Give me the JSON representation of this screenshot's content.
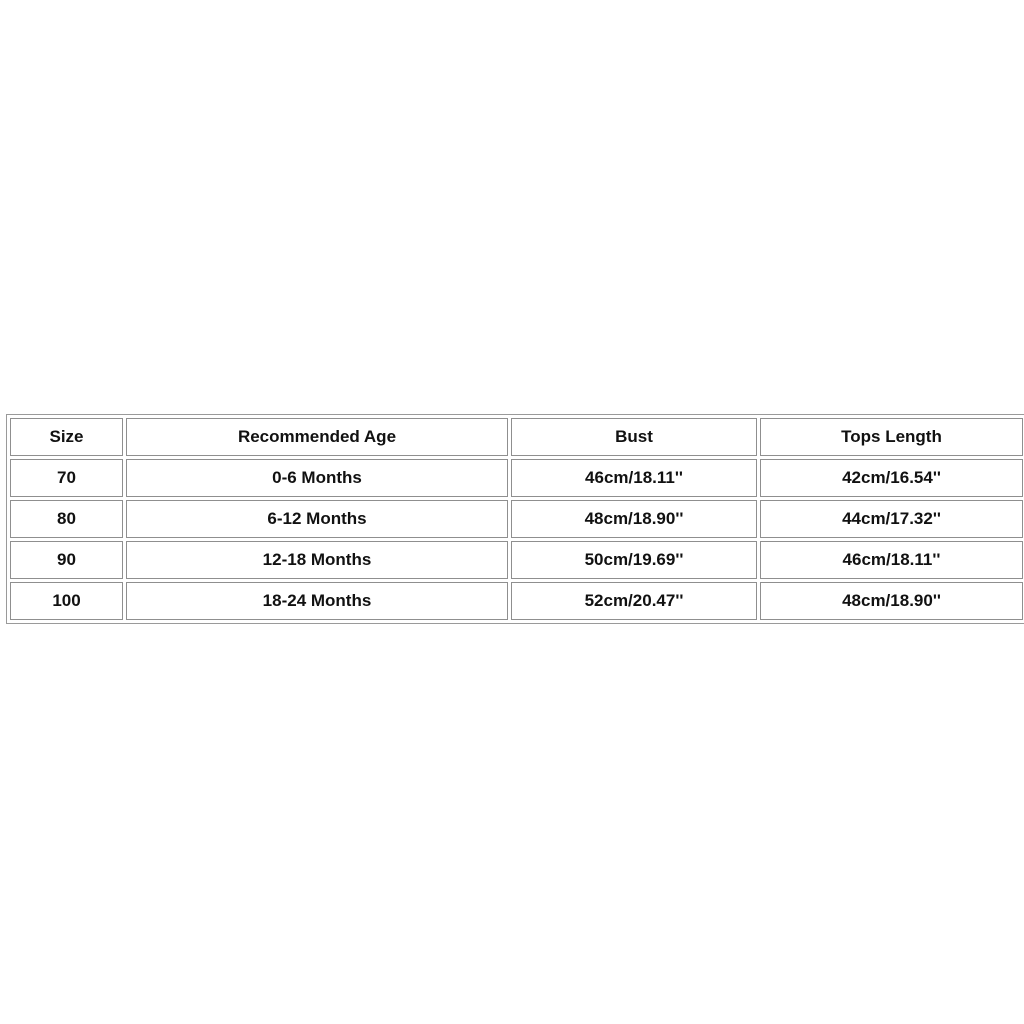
{
  "table": {
    "headers": [
      "Size",
      "Recommended Age",
      "Bust",
      "Tops Length"
    ],
    "rows": [
      [
        "70",
        "0-6 Months",
        "46cm/18.11''",
        "42cm/16.54''"
      ],
      [
        "80",
        "6-12 Months",
        "48cm/18.90''",
        "44cm/17.32''"
      ],
      [
        "90",
        "12-18 Months",
        "50cm/19.69''",
        "46cm/18.11''"
      ],
      [
        "100",
        "18-24 Months",
        "52cm/20.47''",
        "48cm/18.90''"
      ]
    ]
  }
}
